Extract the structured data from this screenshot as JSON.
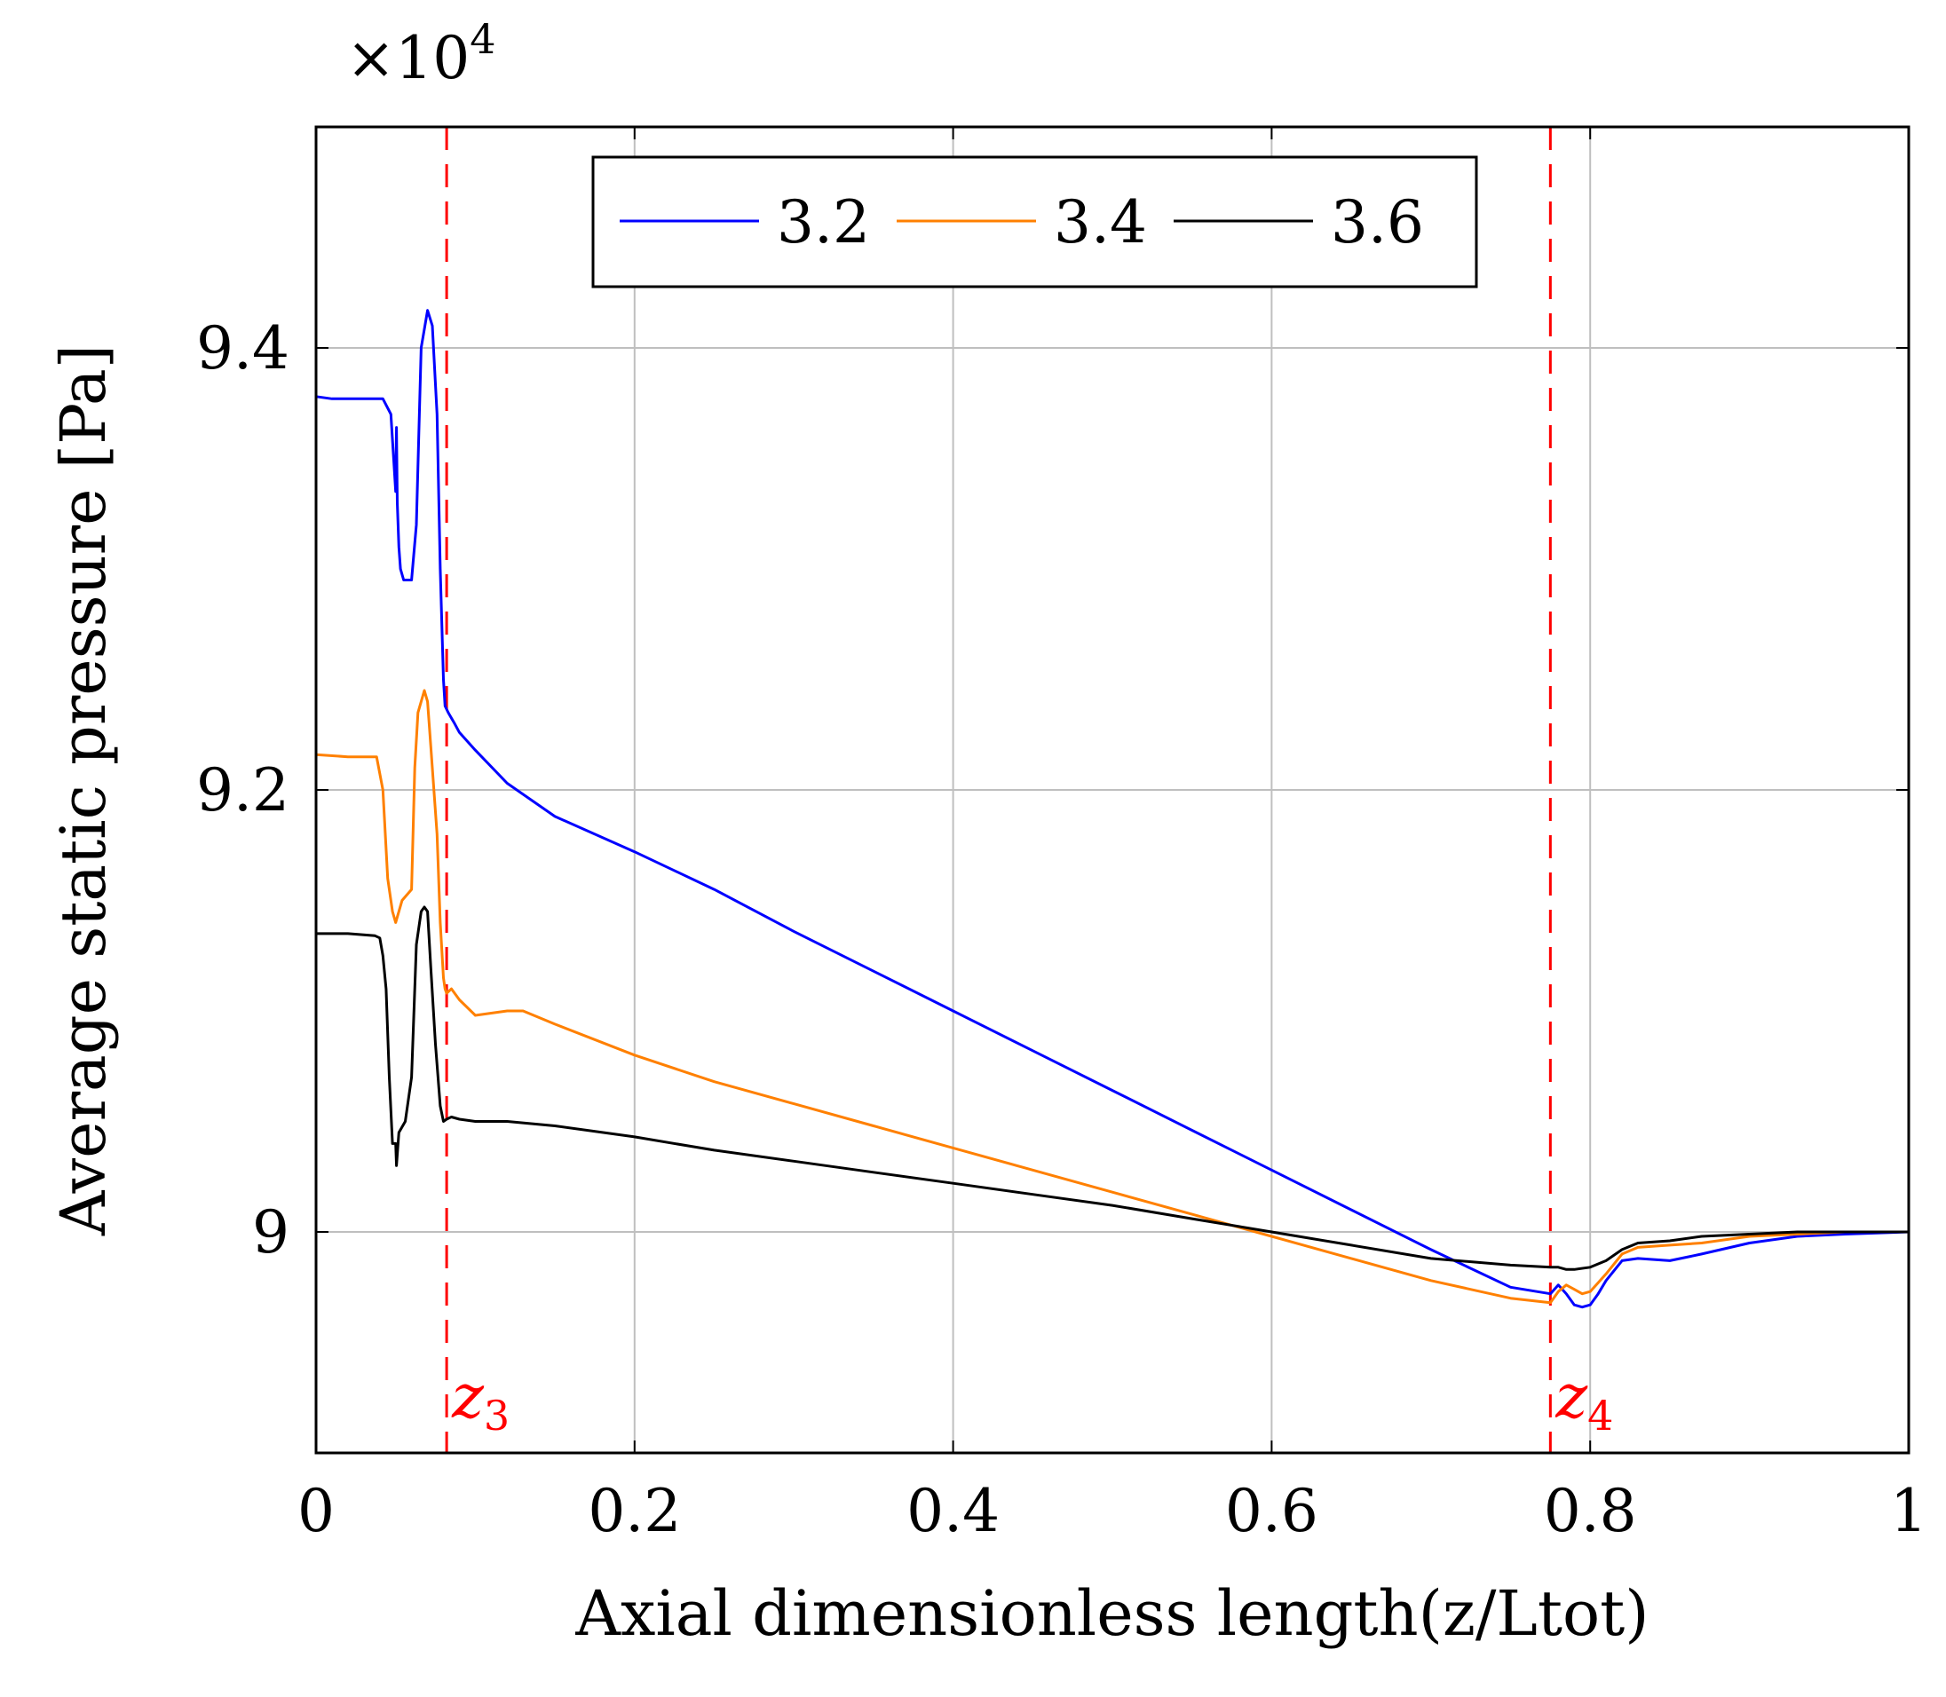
{
  "chart_data": {
    "type": "line",
    "title": "",
    "xlabel": "Axial dimensionless length(z/Ltot)",
    "ylabel": "Average static pressure [Pa]",
    "y_scale_label": "×10",
    "y_scale_exponent": "4",
    "xlim": [
      0,
      1
    ],
    "ylim": [
      8.9,
      9.5
    ],
    "grid": true,
    "legend_position": "top-center",
    "x_ticks": [
      0,
      0.2,
      0.4,
      0.6,
      0.8,
      1
    ],
    "x_tick_labels": [
      "0",
      "0.2",
      "0.4",
      "0.6",
      "0.8",
      "1"
    ],
    "y_ticks": [
      9.0,
      9.2,
      9.4
    ],
    "y_tick_labels": [
      "9",
      "9.2",
      "9.4"
    ],
    "vlines": [
      {
        "x": 0.082,
        "label": "z",
        "subscript": "3",
        "color": "#ff0000"
      },
      {
        "x": 0.775,
        "label": "z",
        "subscript": "4",
        "color": "#ff0000"
      }
    ],
    "series": [
      {
        "name": "3.2",
        "color": "#0000ff",
        "x": [
          0,
          0.01,
          0.03,
          0.042,
          0.047,
          0.05,
          0.0505,
          0.051,
          0.052,
          0.053,
          0.055,
          0.06,
          0.063,
          0.066,
          0.07,
          0.073,
          0.076,
          0.078,
          0.08,
          0.081,
          0.083,
          0.087,
          0.09,
          0.1,
          0.12,
          0.15,
          0.2,
          0.25,
          0.3,
          0.35,
          0.4,
          0.45,
          0.5,
          0.55,
          0.6,
          0.65,
          0.7,
          0.75,
          0.775,
          0.78,
          0.785,
          0.79,
          0.795,
          0.8,
          0.805,
          0.81,
          0.82,
          0.83,
          0.85,
          0.87,
          0.9,
          0.93,
          0.96,
          1.0
        ],
        "values": [
          9.378,
          9.377,
          9.377,
          9.377,
          9.37,
          9.335,
          9.364,
          9.33,
          9.31,
          9.3,
          9.295,
          9.295,
          9.32,
          9.4,
          9.417,
          9.41,
          9.37,
          9.3,
          9.25,
          9.238,
          9.235,
          9.23,
          9.226,
          9.218,
          9.203,
          9.188,
          9.172,
          9.155,
          9.136,
          9.118,
          9.1,
          9.082,
          9.064,
          9.046,
          9.028,
          9.01,
          8.992,
          8.975,
          8.972,
          8.976,
          8.972,
          8.967,
          8.966,
          8.967,
          8.972,
          8.978,
          8.987,
          8.988,
          8.987,
          8.99,
          8.995,
          8.998,
          8.999,
          9.0
        ]
      },
      {
        "name": "3.4",
        "color": "#ff8000",
        "x": [
          0,
          0.02,
          0.038,
          0.042,
          0.045,
          0.048,
          0.05,
          0.054,
          0.06,
          0.062,
          0.064,
          0.068,
          0.07,
          0.072,
          0.076,
          0.078,
          0.08,
          0.081,
          0.082,
          0.085,
          0.09,
          0.1,
          0.12,
          0.13,
          0.15,
          0.2,
          0.25,
          0.3,
          0.35,
          0.4,
          0.45,
          0.5,
          0.55,
          0.6,
          0.65,
          0.7,
          0.75,
          0.775,
          0.78,
          0.785,
          0.79,
          0.795,
          0.8,
          0.805,
          0.81,
          0.82,
          0.83,
          0.85,
          0.87,
          0.9,
          0.93,
          0.96,
          1.0
        ],
        "values": [
          9.216,
          9.215,
          9.215,
          9.2,
          9.16,
          9.145,
          9.14,
          9.15,
          9.155,
          9.21,
          9.235,
          9.245,
          9.24,
          9.22,
          9.18,
          9.14,
          9.115,
          9.11,
          9.108,
          9.11,
          9.105,
          9.098,
          9.1,
          9.1,
          9.094,
          9.08,
          9.068,
          9.058,
          9.048,
          9.038,
          9.028,
          9.018,
          9.008,
          8.998,
          8.988,
          8.978,
          8.97,
          8.968,
          8.973,
          8.976,
          8.974,
          8.972,
          8.973,
          8.977,
          8.981,
          8.99,
          8.993,
          8.994,
          8.995,
          8.998,
          8.999,
          9.0,
          9.0
        ]
      },
      {
        "name": "3.6",
        "color": "#000000",
        "x": [
          0,
          0.02,
          0.037,
          0.04,
          0.042,
          0.044,
          0.046,
          0.048,
          0.05,
          0.0505,
          0.052,
          0.056,
          0.06,
          0.063,
          0.066,
          0.068,
          0.07,
          0.072,
          0.075,
          0.078,
          0.08,
          0.082,
          0.085,
          0.09,
          0.1,
          0.12,
          0.15,
          0.2,
          0.25,
          0.3,
          0.35,
          0.4,
          0.45,
          0.5,
          0.55,
          0.6,
          0.65,
          0.7,
          0.75,
          0.775,
          0.78,
          0.785,
          0.79,
          0.8,
          0.81,
          0.82,
          0.83,
          0.85,
          0.87,
          0.9,
          0.93,
          0.96,
          1.0
        ],
        "values": [
          9.135,
          9.135,
          9.134,
          9.133,
          9.125,
          9.11,
          9.07,
          9.04,
          9.04,
          9.03,
          9.045,
          9.05,
          9.07,
          9.13,
          9.145,
          9.147,
          9.145,
          9.12,
          9.085,
          9.057,
          9.05,
          9.051,
          9.052,
          9.051,
          9.05,
          9.05,
          9.048,
          9.043,
          9.037,
          9.032,
          9.027,
          9.022,
          9.017,
          9.012,
          9.006,
          9.0,
          8.994,
          8.988,
          8.985,
          8.984,
          8.984,
          8.983,
          8.983,
          8.984,
          8.987,
          8.992,
          8.995,
          8.996,
          8.998,
          8.999,
          9.0,
          9.0,
          9.0
        ]
      }
    ]
  }
}
